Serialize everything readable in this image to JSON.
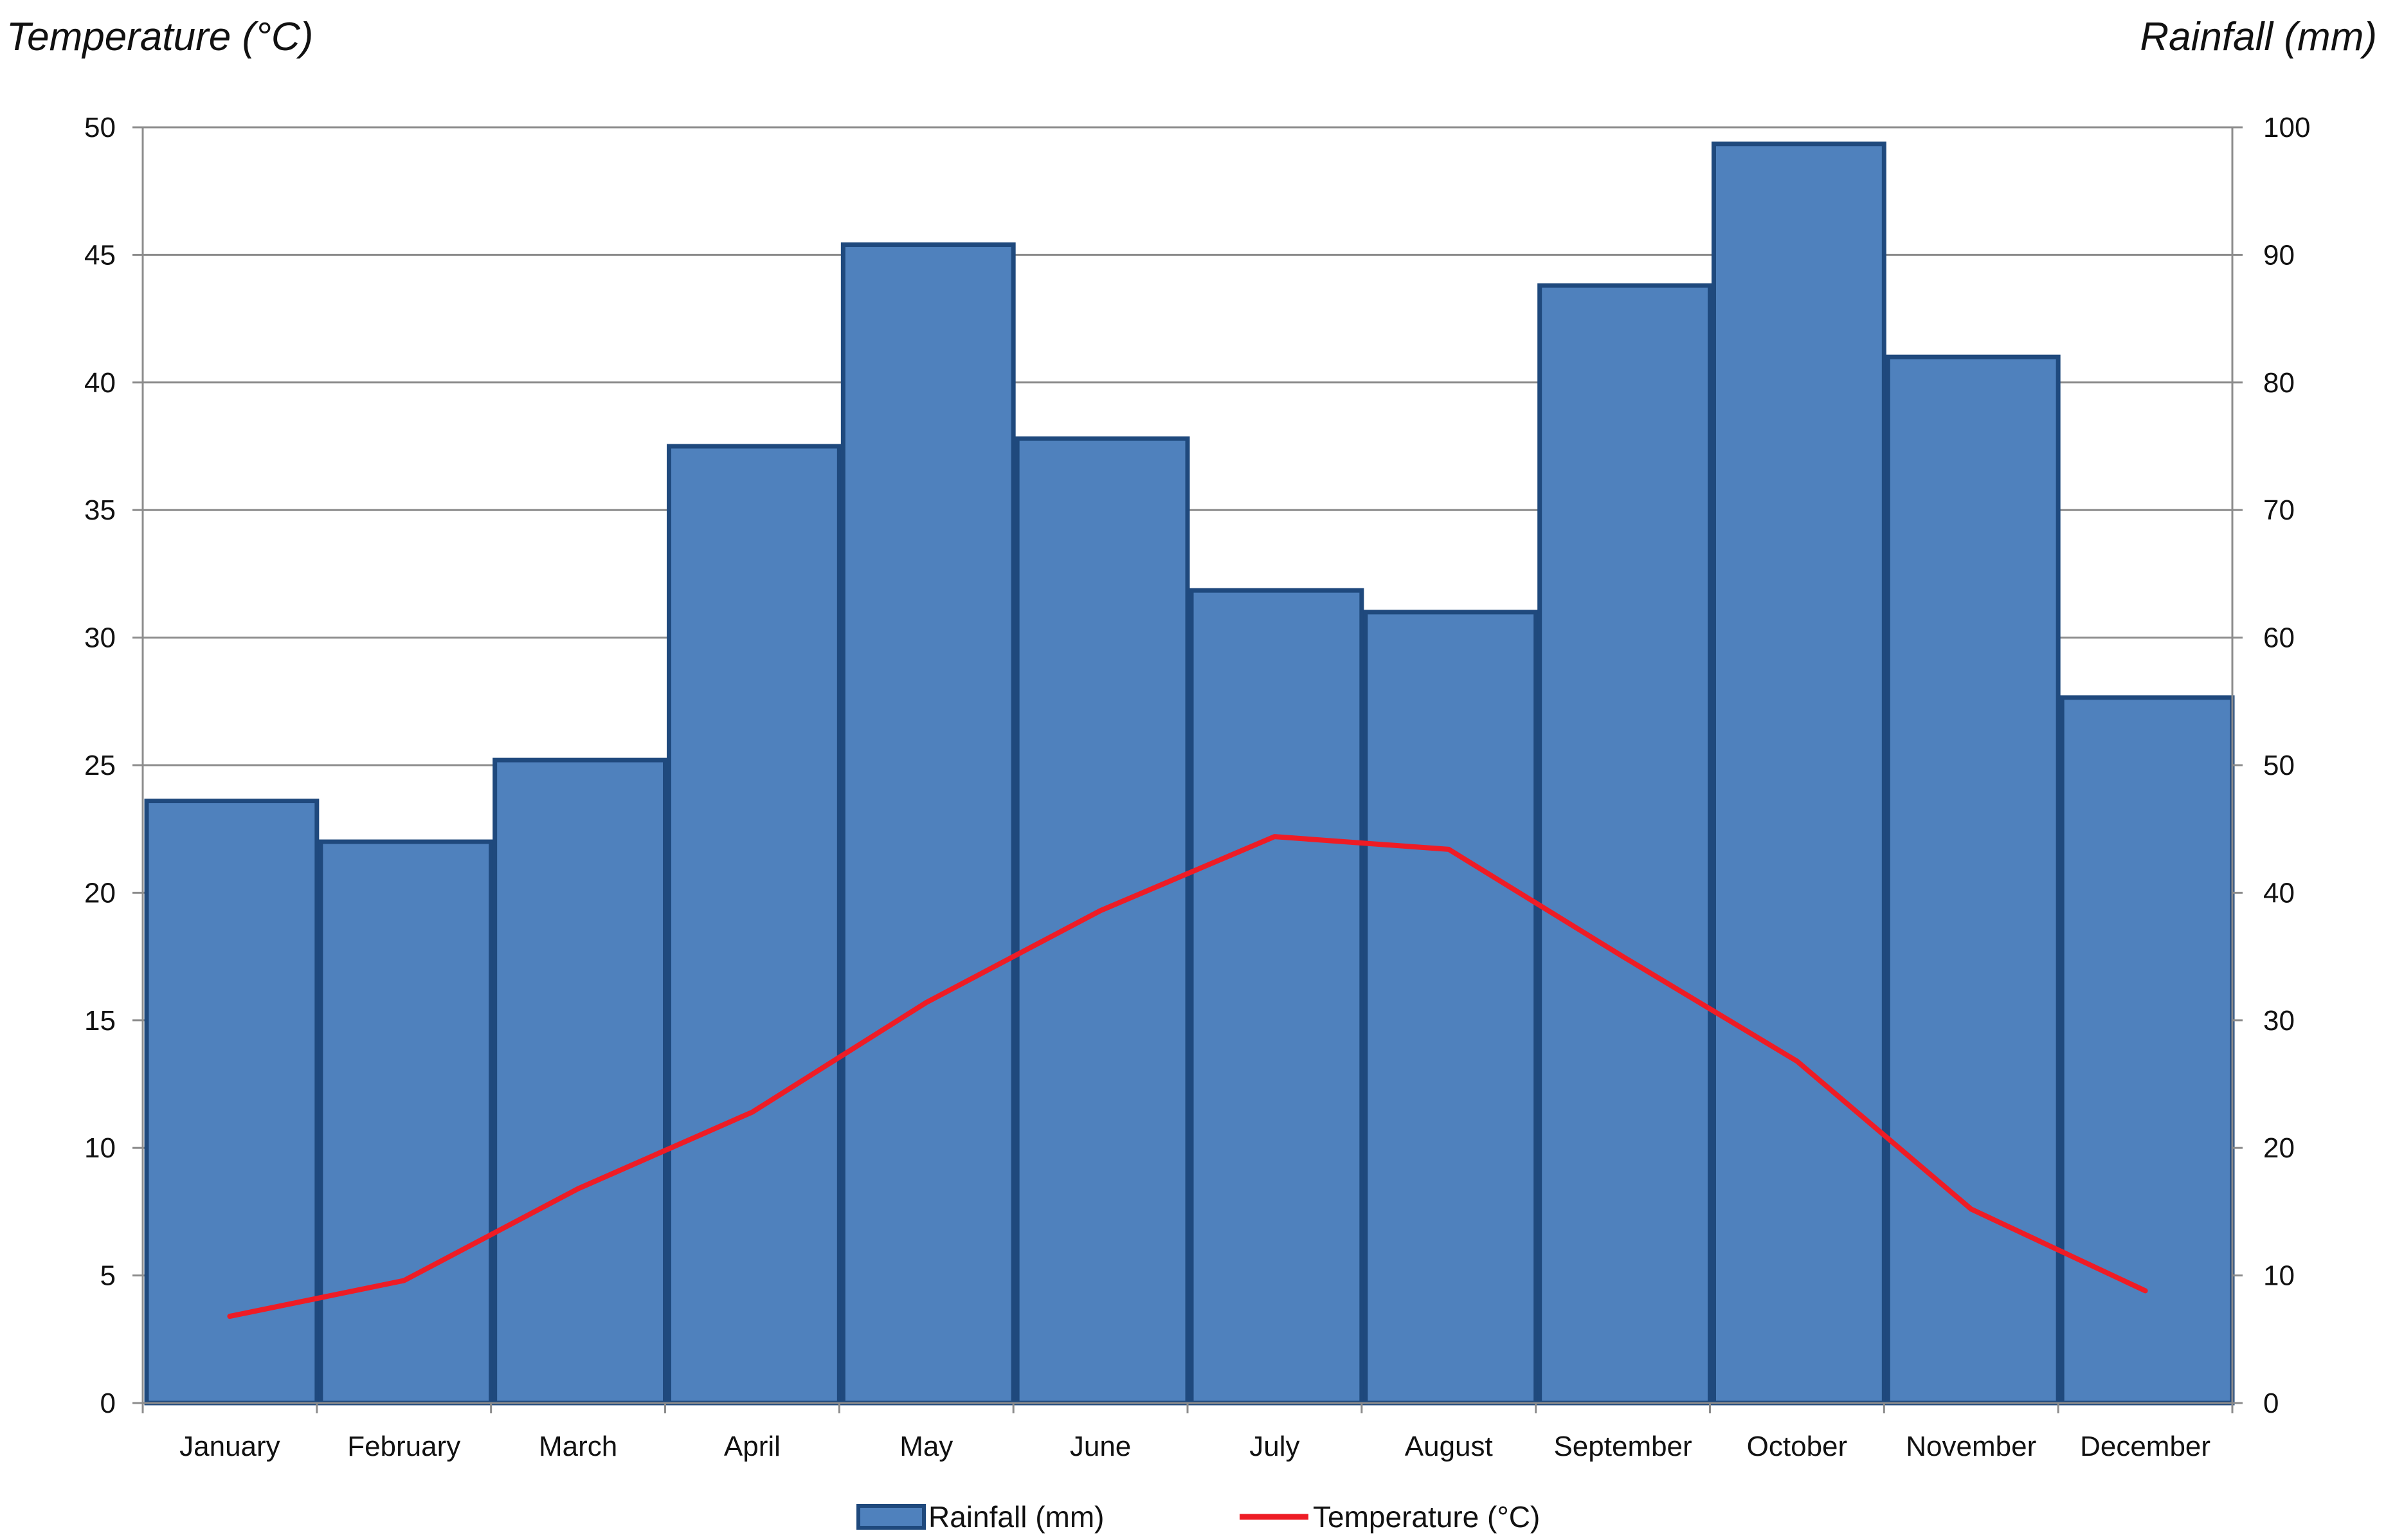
{
  "chart_data": {
    "type": "bar",
    "categories": [
      "January",
      "February",
      "March",
      "April",
      "May",
      "June",
      "July",
      "August",
      "September",
      "October",
      "November",
      "December"
    ],
    "series": [
      {
        "name": "Rainfall (mm)",
        "type": "bar",
        "axis": "right",
        "color": "#4f81bd",
        "edge_color": "#1f497d",
        "values": [
          47.2,
          44.0,
          50.4,
          75.0,
          90.8,
          75.6,
          63.7,
          62.0,
          87.6,
          98.7,
          82.0,
          55.3
        ]
      },
      {
        "name": "Temperature (°C)",
        "type": "line",
        "axis": "left",
        "color": "#ee1c25",
        "values": [
          3.4,
          4.8,
          8.4,
          11.4,
          15.7,
          19.3,
          22.2,
          21.7,
          17.5,
          13.4,
          7.6,
          4.4
        ]
      }
    ],
    "y_left": {
      "label": "Temperature (°C)",
      "lim": [
        0,
        50
      ],
      "ticks": [
        "0",
        "5",
        "10",
        "15",
        "20",
        "25",
        "30",
        "35",
        "40",
        "45",
        "50"
      ]
    },
    "y_right": {
      "label": "Rainfall (mm)",
      "lim": [
        0,
        100
      ],
      "ticks": [
        "0",
        "10",
        "20",
        "30",
        "40",
        "50",
        "60",
        "70",
        "80",
        "90",
        "100"
      ]
    },
    "xlabel": "",
    "title": "",
    "grid": true,
    "legend": "bottom"
  }
}
